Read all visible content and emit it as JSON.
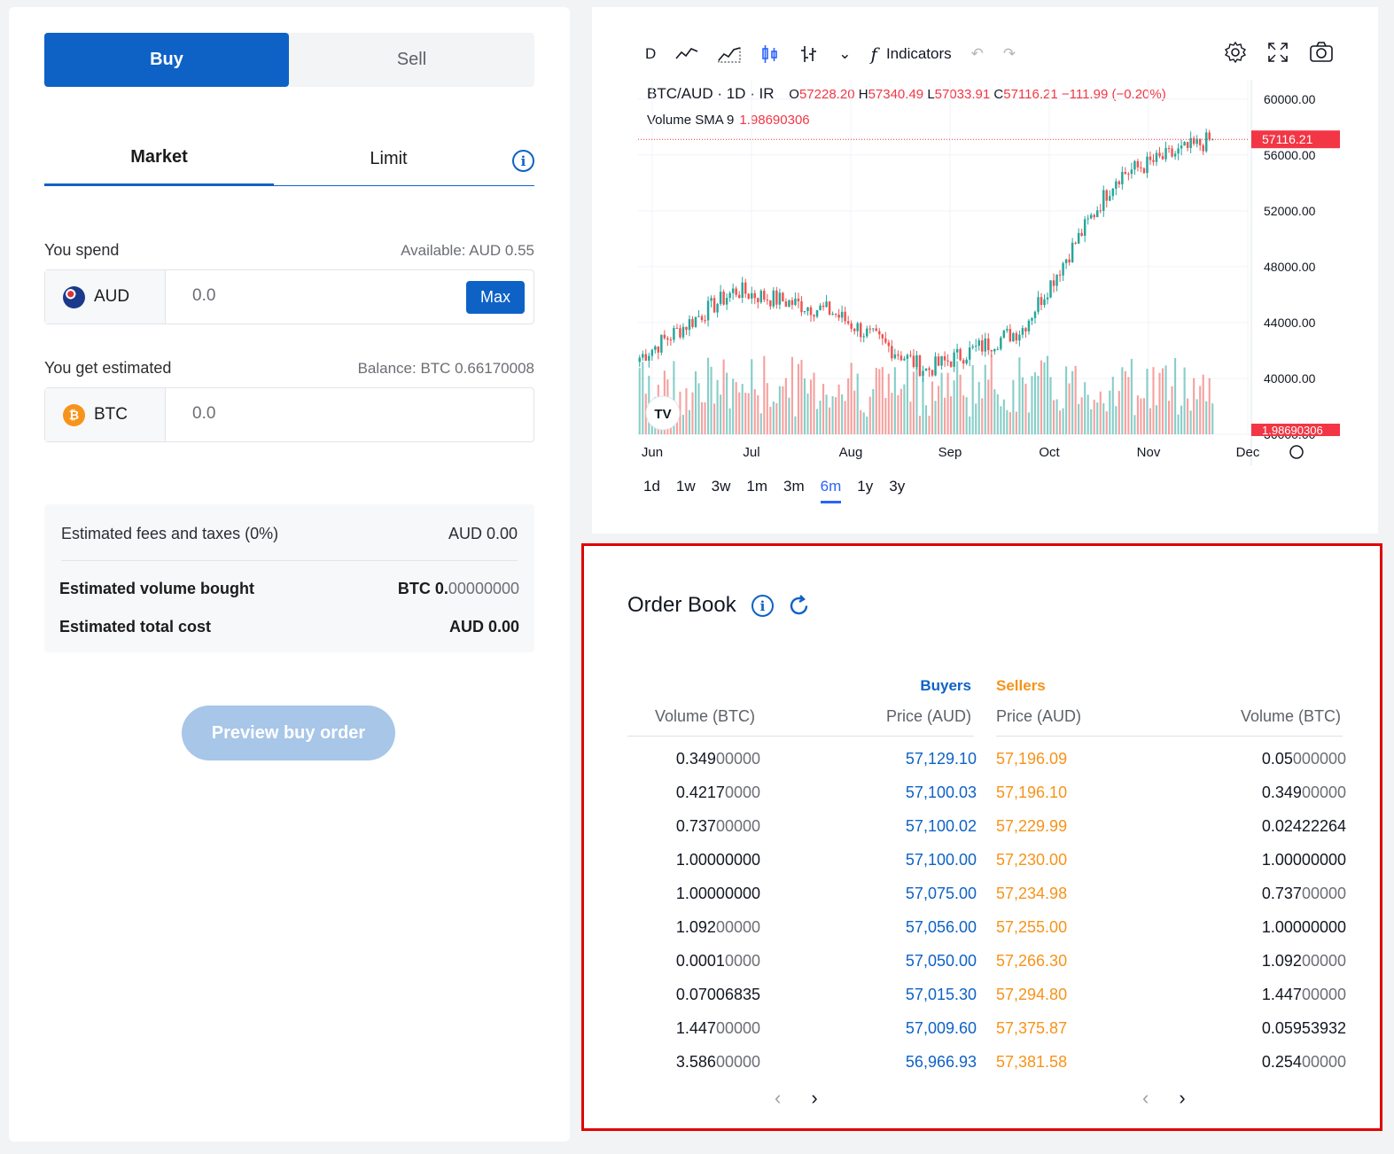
{
  "trade": {
    "buy_label": "Buy",
    "sell_label": "Sell",
    "market_label": "Market",
    "limit_label": "Limit",
    "spend": {
      "label": "You spend",
      "available": "Available: AUD 0.55",
      "currency": "AUD",
      "value": "0.0",
      "max_label": "Max"
    },
    "get": {
      "label": "You get estimated",
      "balance": "Balance: BTC 0.66170008",
      "currency": "BTC",
      "value": "0.0"
    },
    "summary": {
      "fees_label": "Estimated fees and taxes (0%)",
      "fees_value": "AUD 0.00",
      "volume_label": "Estimated volume bought",
      "volume_value_bold": "BTC 0.",
      "volume_value_light": "00000000",
      "total_label": "Estimated total cost",
      "total_value": "AUD 0.00"
    },
    "preview_label": "Preview buy order"
  },
  "chart": {
    "toolbar": {
      "interval": "D",
      "indicators_label": "Indicators"
    },
    "symbol": "BTC/AUD · 1D · IR",
    "ohlc": {
      "o_label": "O",
      "o": "57228.20",
      "h_label": "H",
      "h": "57340.49",
      "l_label": "L",
      "l": "57033.91",
      "c_label": "C",
      "c": "57116.21",
      "change": "−111.99 (−0.20%)"
    },
    "volume_label": "Volume SMA 9",
    "volume_value": "1.98690306",
    "last_price_tag": "57116.21",
    "volume_tag": "1.98690306",
    "ranges": [
      "1d",
      "1w",
      "3w",
      "1m",
      "3m",
      "6m",
      "1y",
      "3y"
    ],
    "active_range": "6m"
  },
  "chart_data": {
    "type": "candlestick",
    "title": "BTC/AUD · 1D · IR",
    "x_ticks": [
      "Jun",
      "Jul",
      "Aug",
      "Sep",
      "Oct",
      "Nov",
      "Dec"
    ],
    "y_ticks": [
      "60000.00",
      "56000.00",
      "52000.00",
      "48000.00",
      "44000.00",
      "40000.00",
      "36000.00"
    ],
    "ylim": [
      36000,
      61000
    ],
    "monthly_close_approx": [
      {
        "month": "Jun",
        "close": 41500
      },
      {
        "month": "Jul",
        "close": 46300
      },
      {
        "month": "Aug",
        "close": 44800
      },
      {
        "month": "Sep",
        "close": 40600
      },
      {
        "month": "Oct",
        "close": 43500
      },
      {
        "month": "Nov",
        "close": 54500
      },
      {
        "month": "Dec",
        "close": 57116.21
      }
    ],
    "last": 57116.21,
    "up_color": "#26a69a",
    "down_color": "#ef5350"
  },
  "orderbook": {
    "title": "Order Book",
    "buyers_label": "Buyers",
    "sellers_label": "Sellers",
    "headers": {
      "buy_volume": "Volume (BTC)",
      "buy_price": "Price (AUD)",
      "sell_price": "Price (AUD)",
      "sell_volume": "Volume (BTC)"
    },
    "rows": [
      {
        "bv_main": "0.349",
        "bv_dim": "00000",
        "bp": "57,129.10",
        "sp": "57,196.09",
        "sv_main": "0.05",
        "sv_dim": "000000"
      },
      {
        "bv_main": "0.4217",
        "bv_dim": "0000",
        "bp": "57,100.03",
        "sp": "57,196.10",
        "sv_main": "0.349",
        "sv_dim": "00000"
      },
      {
        "bv_main": "0.737",
        "bv_dim": "00000",
        "bp": "57,100.02",
        "sp": "57,229.99",
        "sv_main": "0.02422264",
        "sv_dim": ""
      },
      {
        "bv_main": "1.00000000",
        "bv_dim": "",
        "bp": "57,100.00",
        "sp": "57,230.00",
        "sv_main": "1.00000000",
        "sv_dim": ""
      },
      {
        "bv_main": "1.00000000",
        "bv_dim": "",
        "bp": "57,075.00",
        "sp": "57,234.98",
        "sv_main": "0.737",
        "sv_dim": "00000"
      },
      {
        "bv_main": "1.092",
        "bv_dim": "00000",
        "bp": "57,056.00",
        "sp": "57,255.00",
        "sv_main": "1.00000000",
        "sv_dim": ""
      },
      {
        "bv_main": "0.0001",
        "bv_dim": "0000",
        "bp": "57,050.00",
        "sp": "57,266.30",
        "sv_main": "1.092",
        "sv_dim": "00000"
      },
      {
        "bv_main": "0.07006835",
        "bv_dim": "",
        "bp": "57,015.30",
        "sp": "57,294.80",
        "sv_main": "1.447",
        "sv_dim": "00000"
      },
      {
        "bv_main": "1.447",
        "bv_dim": "00000",
        "bp": "57,009.60",
        "sp": "57,375.87",
        "sv_main": "0.05953932",
        "sv_dim": ""
      },
      {
        "bv_main": "3.586",
        "bv_dim": "00000",
        "bp": "56,966.93",
        "sp": "57,381.58",
        "sv_main": "0.254",
        "sv_dim": "00000"
      }
    ]
  }
}
